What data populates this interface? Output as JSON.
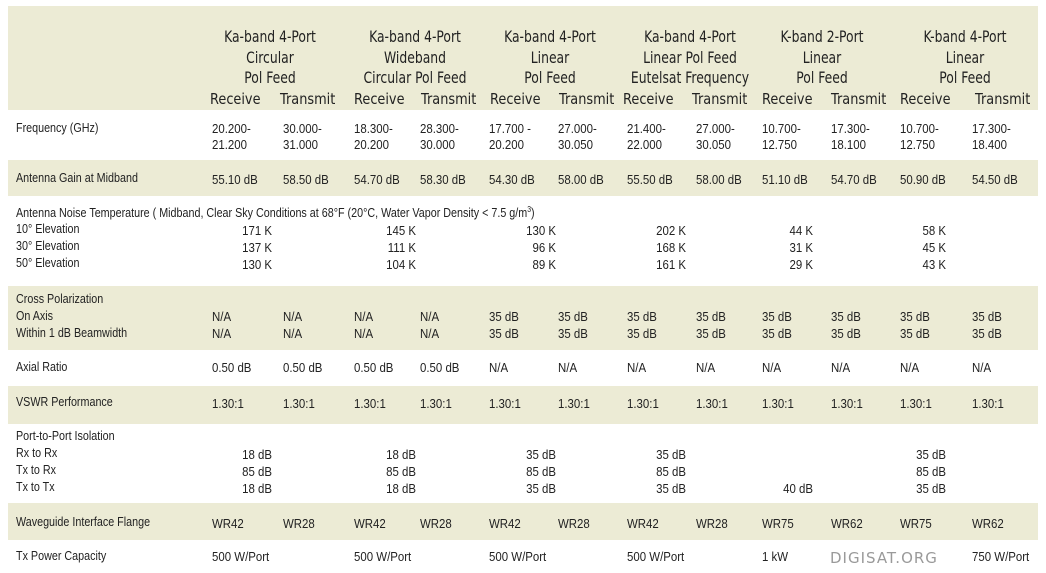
{
  "columns": [
    {
      "title": [
        "Ka-band 4-Port",
        "Circular",
        "Pol Feed"
      ]
    },
    {
      "title": [
        "Ka-band 4-Port",
        "Wideband",
        "Circular Pol Feed"
      ]
    },
    {
      "title": [
        "Ka-band 4-Port",
        "Linear",
        "Pol Feed"
      ]
    },
    {
      "title": [
        "Ka-band 4-Port",
        "Linear Pol Feed",
        "Eutelsat Frequency"
      ]
    },
    {
      "title": [
        "K-band 2-Port",
        "Linear",
        "Pol Feed"
      ]
    },
    {
      "title": [
        "K-band 4-Port",
        "Linear",
        "Pol Feed"
      ]
    }
  ],
  "sub": {
    "receive": "Receive",
    "transmit": "Transmit"
  },
  "rows": {
    "frequency": {
      "label": "Frequency (GHz)",
      "values": [
        [
          "20.200-",
          "21.200"
        ],
        [
          "30.000-",
          "31.000"
        ],
        [
          "18.300-",
          "20.200"
        ],
        [
          "28.300-",
          "30.000"
        ],
        [
          "17.700 -",
          "20.200"
        ],
        [
          "27.000-",
          "30.050"
        ],
        [
          "21.400-",
          "22.000"
        ],
        [
          "27.000-",
          "30.050"
        ],
        [
          "10.700-",
          "12.750"
        ],
        [
          "17.300-",
          "18.100"
        ],
        [
          "10.700-",
          "12.750"
        ],
        [
          "17.300-",
          "18.400"
        ]
      ]
    },
    "gain": {
      "label": "Antenna Gain at Midband",
      "values": [
        "55.10 dB",
        "58.50 dB",
        "54.70 dB",
        "58.30 dB",
        "54.30 dB",
        "58.00 dB",
        "55.50 dB",
        "58.00 dB",
        "51.10 dB",
        "54.70 dB",
        "50.90 dB",
        "54.50 dB"
      ]
    },
    "noise": {
      "label": "Antenna Noise Temperature ( Midband, Clear Sky Conditions at 68°F (20°C, Water Vapor Density < 7.5 g/m",
      "label_sup": "3",
      "label_end": ")",
      "sub_labels": [
        "10° Elevation",
        "30° Elevation",
        "50° Elevation"
      ],
      "values": [
        [
          "171 K",
          "137 K",
          "130 K"
        ],
        [
          "145 K",
          "111 K",
          "104 K"
        ],
        [
          "130 K",
          "96 K",
          "89 K"
        ],
        [
          "202 K",
          "168 K",
          "161 K"
        ],
        [
          "44 K",
          "31 K",
          "29 K"
        ],
        [
          "58 K",
          "45 K",
          "43 K"
        ]
      ]
    },
    "cross": {
      "label": "Cross Polarization",
      "sub_labels": [
        "On Axis",
        "Within 1 dB Beamwidth"
      ],
      "values": [
        [
          "N/A",
          "N/A"
        ],
        [
          "N/A",
          "N/A"
        ],
        [
          "N/A",
          "N/A"
        ],
        [
          "N/A",
          "N/A"
        ],
        [
          "35 dB",
          "35 dB"
        ],
        [
          "35 dB",
          "35 dB"
        ],
        [
          "35 dB",
          "35 dB"
        ],
        [
          "35 dB",
          "35 dB"
        ],
        [
          "35 dB",
          "35 dB"
        ],
        [
          "35 dB",
          "35 dB"
        ],
        [
          "35 dB",
          "35 dB"
        ],
        [
          "35 dB",
          "35 dB"
        ]
      ]
    },
    "axial": {
      "label": "Axial Ratio",
      "values": [
        "0.50 dB",
        "0.50 dB",
        "0.50 dB",
        "0.50 dB",
        "N/A",
        "N/A",
        "N/A",
        "N/A",
        "N/A",
        "N/A",
        "N/A",
        "N/A"
      ]
    },
    "vswr": {
      "label": "VSWR Performance",
      "values": [
        "1.30:1",
        "1.30:1",
        "1.30:1",
        "1.30:1",
        "1.30:1",
        "1.30:1",
        "1.30:1",
        "1.30:1",
        "1.30:1",
        "1.30:1",
        "1.30:1",
        "1.30:1"
      ]
    },
    "isolation": {
      "label": "Port-to-Port Isolation",
      "sub_labels": [
        "Rx to Rx",
        "Tx to Rx",
        "Tx to Tx"
      ],
      "values": [
        [
          "18 dB",
          "85 dB",
          "18 dB"
        ],
        [
          "18 dB",
          "85 dB",
          "18 dB"
        ],
        [
          "35 dB",
          "85 dB",
          "35 dB"
        ],
        [
          "35 dB",
          "85 dB",
          "35 dB"
        ],
        [
          "",
          "",
          "40 dB"
        ],
        [
          "35 dB",
          "85 dB",
          "35 dB"
        ]
      ]
    },
    "flange": {
      "label": "Waveguide Interface Flange",
      "values": [
        "WR42",
        "WR28",
        "WR42",
        "WR28",
        "WR42",
        "WR28",
        "WR42",
        "WR28",
        "WR75",
        "WR62",
        "WR75",
        "WR62"
      ]
    },
    "power": {
      "label": "Tx Power Capacity",
      "values": [
        "500 W/Port",
        "",
        "500 W/Port",
        "",
        "500 W/Port",
        "",
        "500 W/Port",
        "",
        "1 kW",
        "",
        "",
        "750 W/Port"
      ]
    }
  },
  "watermark": "DIGISAT.ORG"
}
